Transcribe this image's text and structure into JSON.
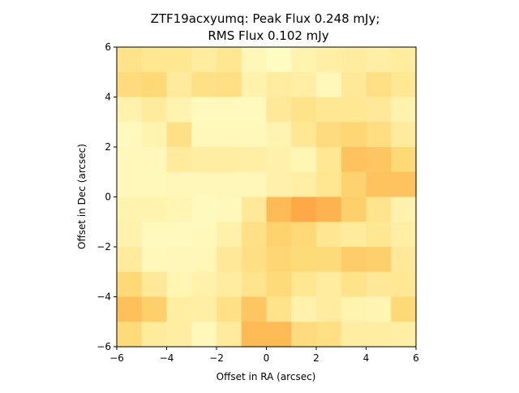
{
  "chart_data": {
    "type": "heatmap",
    "title_line1": "ZTF19acxyumq: Peak Flux 0.248 mJy;",
    "title_line2": "RMS Flux 0.102 mJy",
    "xlabel": "Offset in RA (arcsec)",
    "ylabel": "Offset in Dec (arcsec)",
    "xlim": [
      -6,
      6
    ],
    "ylim": [
      -6,
      6
    ],
    "xticks": [
      -6,
      -4,
      -2,
      0,
      2,
      4,
      6
    ],
    "yticks": [
      -6,
      -4,
      -2,
      0,
      2,
      4,
      6
    ],
    "xtick_labels": [
      "−6",
      "−4",
      "−2",
      "0",
      "2",
      "4",
      "6"
    ],
    "ytick_labels": [
      "−6",
      "−4",
      "−2",
      "0",
      "2",
      "4",
      "6"
    ],
    "colormap": "YlOrRd",
    "vmin": 0.0,
    "vmax": 1.0,
    "grid": false,
    "rows_top_to_bottom": [
      [
        0.19,
        0.17,
        0.17,
        0.13,
        0.17,
        0.06,
        0.03,
        0.08,
        0.11,
        0.13,
        0.11,
        0.13
      ],
      [
        0.23,
        0.25,
        0.14,
        0.2,
        0.21,
        0.09,
        0.13,
        0.11,
        0.05,
        0.15,
        0.21,
        0.16
      ],
      [
        0.09,
        0.14,
        0.08,
        0.04,
        0.04,
        0.04,
        0.15,
        0.19,
        0.16,
        0.16,
        0.15,
        0.09
      ],
      [
        0.04,
        0.08,
        0.2,
        0.05,
        0.05,
        0.05,
        0.08,
        0.16,
        0.23,
        0.26,
        0.22,
        0.14
      ],
      [
        0.05,
        0.05,
        0.14,
        0.12,
        0.12,
        0.11,
        0.09,
        0.07,
        0.16,
        0.32,
        0.31,
        0.25
      ],
      [
        0.05,
        0.05,
        0.06,
        0.06,
        0.06,
        0.06,
        0.1,
        0.11,
        0.17,
        0.27,
        0.32,
        0.32
      ],
      [
        0.08,
        0.08,
        0.07,
        0.04,
        0.05,
        0.15,
        0.35,
        0.41,
        0.37,
        0.28,
        0.18,
        0.09
      ],
      [
        0.09,
        0.04,
        0.04,
        0.05,
        0.1,
        0.2,
        0.27,
        0.25,
        0.17,
        0.14,
        0.17,
        0.11
      ],
      [
        0.14,
        0.05,
        0.06,
        0.06,
        0.15,
        0.21,
        0.26,
        0.24,
        0.24,
        0.29,
        0.28,
        0.15
      ],
      [
        0.25,
        0.15,
        0.07,
        0.1,
        0.13,
        0.18,
        0.24,
        0.17,
        0.13,
        0.19,
        0.15,
        0.16
      ],
      [
        0.33,
        0.28,
        0.12,
        0.11,
        0.2,
        0.31,
        0.19,
        0.09,
        0.13,
        0.08,
        0.07,
        0.25
      ],
      [
        0.24,
        0.14,
        0.12,
        0.05,
        0.14,
        0.35,
        0.35,
        0.23,
        0.21,
        0.12,
        0.12,
        0.11
      ]
    ]
  }
}
